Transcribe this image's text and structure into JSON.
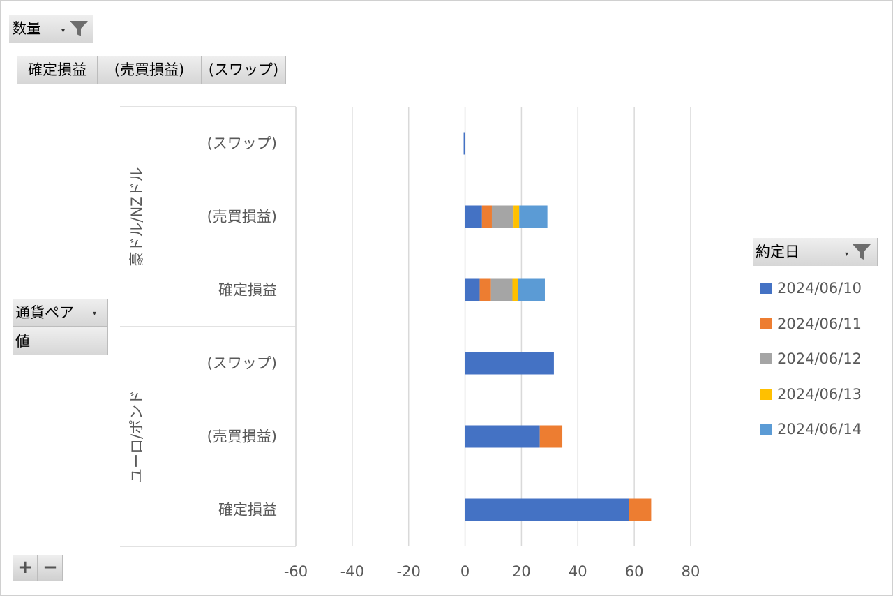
{
  "filter_field": {
    "label": "数量",
    "dropdown_glyph": "▾",
    "icon": "funnel-icon"
  },
  "column_fields": [
    "確定損益",
    "(売買損益)",
    "(スワップ)"
  ],
  "row_fields": {
    "pair_label": "通貨ペア",
    "value_label": "値",
    "dropdown_glyph": "▾"
  },
  "legend": {
    "title": "約定日",
    "icon": "funnel-icon",
    "dropdown_glyph": "▾"
  },
  "expand_controls": {
    "plus": "+",
    "minus": "−"
  },
  "colors": {
    "s1": "#4472C4",
    "s2": "#ED7D31",
    "s3": "#A5A5A5",
    "s4": "#FFC000",
    "s5": "#5B9BD5",
    "grid": "#d9d9d9",
    "axisText": "#595959"
  },
  "chart_data": {
    "type": "bar",
    "orientation": "horizontal",
    "stacked": true,
    "groups": [
      {
        "name": "豪ドル/NZドル",
        "categories": [
          "(スワップ)",
          "(売買損益)",
          "確定損益"
        ]
      },
      {
        "name": "ユーロ/ポンド",
        "categories": [
          "(スワップ)",
          "(売買損益)",
          "確定損益"
        ]
      }
    ],
    "series": [
      {
        "name": "2024/06/10",
        "values": [
          -0.5,
          6,
          5.2,
          31.5,
          26.5,
          58
        ]
      },
      {
        "name": "2024/06/11",
        "values": [
          0,
          3.5,
          4,
          0,
          8,
          8
        ]
      },
      {
        "name": "2024/06/12",
        "values": [
          0,
          7.7,
          7.6,
          0,
          0,
          0
        ]
      },
      {
        "name": "2024/06/13",
        "values": [
          0,
          2,
          2,
          0,
          0,
          0
        ]
      },
      {
        "name": "2024/06/14",
        "values": [
          0,
          10,
          9.5,
          0,
          0,
          0
        ]
      }
    ],
    "xlim": [
      -60,
      80
    ],
    "xticks": [
      -60,
      -40,
      -20,
      0,
      20,
      40,
      60,
      80
    ],
    "grid": true,
    "legend_position": "right"
  }
}
